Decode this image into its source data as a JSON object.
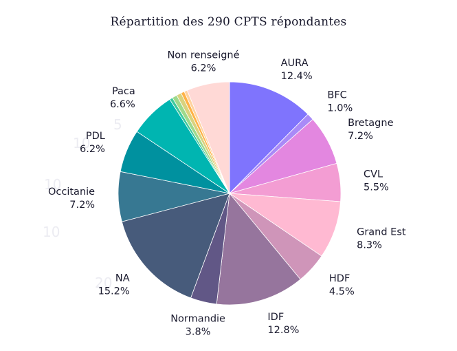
{
  "chart_data": {
    "type": "pie",
    "title": "Répartition des 290 CPTS répondantes",
    "start_angle_deg": 0,
    "direction": "clockwise",
    "slices": [
      {
        "name": "AURA",
        "value": 12.4,
        "label": "12.4%",
        "color": "#7f74fd",
        "show_label": true
      },
      {
        "name": "BFC",
        "value": 1.0,
        "label": "1.0%",
        "color": "#a98af7",
        "show_label": true
      },
      {
        "name": "Bretagne",
        "value": 7.2,
        "label": "7.2%",
        "color": "#e387e0",
        "show_label": true
      },
      {
        "name": "CVL",
        "value": 5.5,
        "label": "5.5%",
        "color": "#f39dd3",
        "show_label": true
      },
      {
        "name": "Grand Est",
        "value": 8.3,
        "label": "8.3%",
        "color": "#ffb9d2",
        "show_label": true
      },
      {
        "name": "HDF",
        "value": 4.5,
        "label": "4.5%",
        "color": "#cf95b9",
        "show_label": true
      },
      {
        "name": "IDF",
        "value": 12.8,
        "label": "12.8%",
        "color": "#96759d",
        "show_label": true
      },
      {
        "name": "Normandie",
        "value": 3.8,
        "label": "3.8%",
        "color": "#615786",
        "show_label": true
      },
      {
        "name": "NA",
        "value": 15.2,
        "label": "15.2%",
        "color": "#475b7b",
        "show_label": true
      },
      {
        "name": "Occitanie",
        "value": 7.2,
        "label": "7.2%",
        "color": "#377892",
        "show_label": true
      },
      {
        "name": "PDL",
        "value": 6.2,
        "label": "6.2%",
        "color": "#00919f",
        "show_label": true
      },
      {
        "name": "Paca",
        "value": 6.6,
        "label": "6.6%",
        "color": "#00b5b1",
        "show_label": true
      },
      {
        "name": "",
        "value": 0.45,
        "label": "",
        "color": "#3ec99c",
        "show_label": false
      },
      {
        "name": "",
        "value": 0.7,
        "label": "",
        "color": "#9fd98c",
        "show_label": false
      },
      {
        "name": "",
        "value": 0.7,
        "label": "",
        "color": "#d9d27e",
        "show_label": false
      },
      {
        "name": "",
        "value": 0.5,
        "label": "",
        "color": "#ffb347",
        "show_label": false
      },
      {
        "name": "",
        "value": 0.45,
        "label": "",
        "color": "#ffd2a0",
        "show_label": false
      },
      {
        "name": "Non renseigné",
        "value": 6.2,
        "label": "6.2%",
        "color": "#ffd9d6",
        "show_label": true
      }
    ]
  }
}
